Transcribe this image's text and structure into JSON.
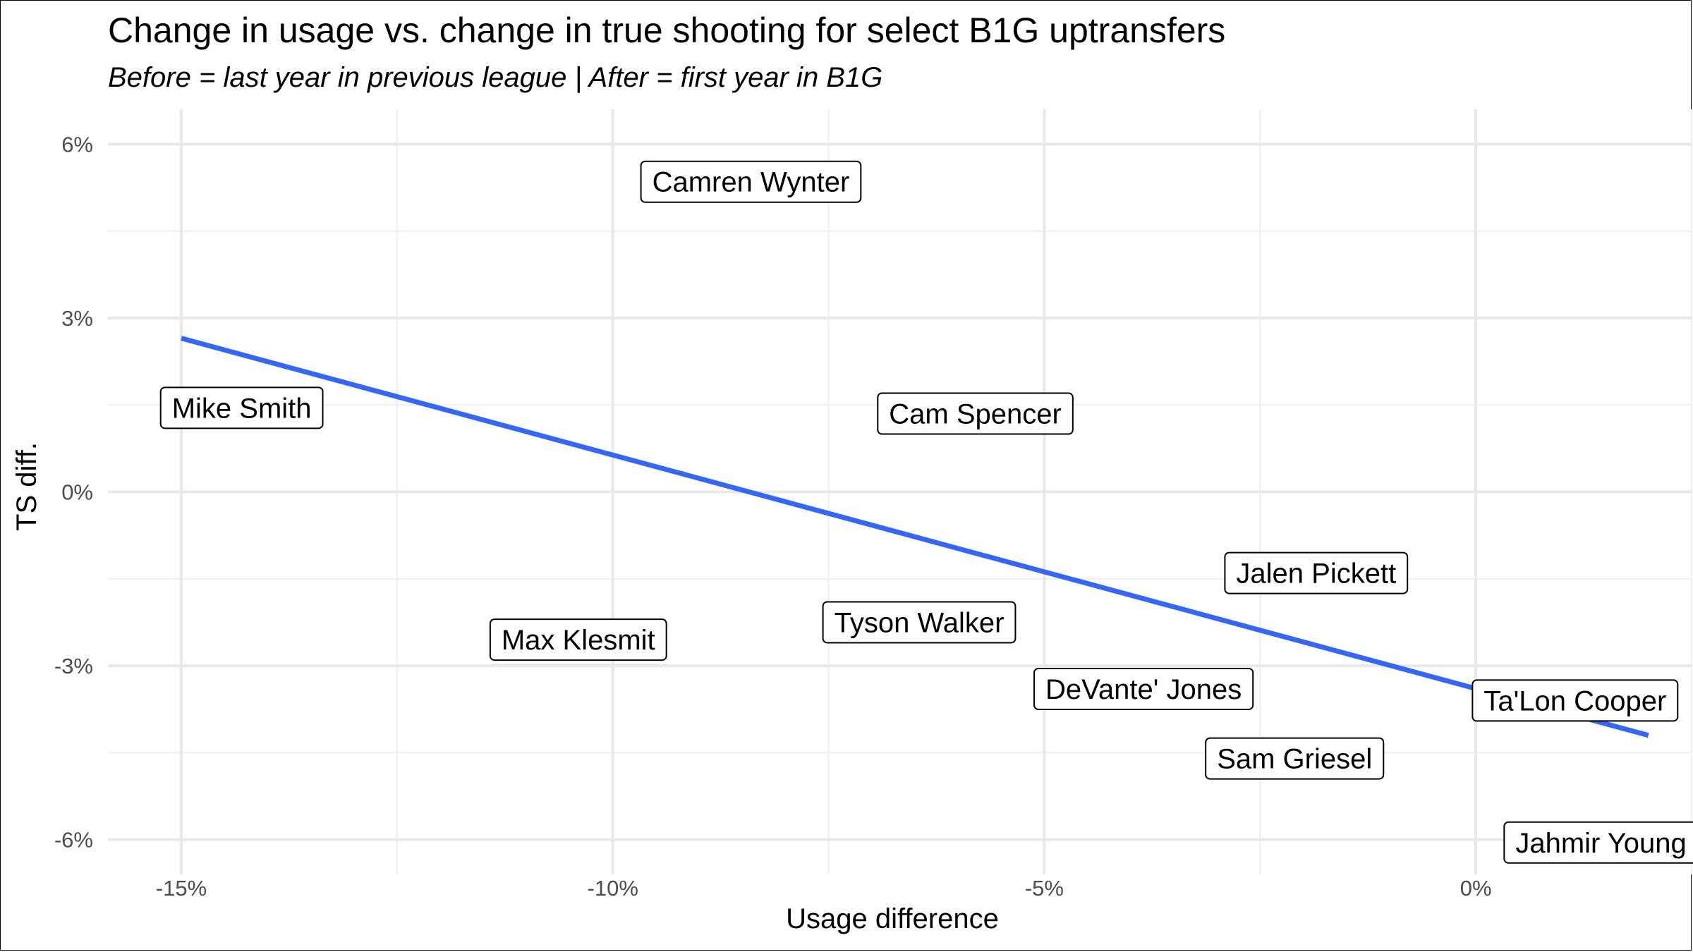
{
  "chart_data": {
    "type": "scatter",
    "title": "Change in usage vs. change in true shooting for select B1G uptransfers",
    "subtitle": "Before = last year in previous league | After = first year in B1G",
    "xlabel": "Usage difference",
    "ylabel": "TS diff.",
    "xlim": [
      -15.85,
      2.5
    ],
    "ylim": [
      -6.6,
      6.6
    ],
    "x_ticks": [
      -15,
      -10,
      -5,
      0
    ],
    "x_tick_labels": [
      "-15%",
      "-10%",
      "-5%",
      "0%"
    ],
    "y_ticks": [
      -6,
      -3,
      0,
      3,
      6
    ],
    "y_tick_labels": [
      "-6%",
      "-3%",
      "0%",
      "3%",
      "6%"
    ],
    "grid": true,
    "points": [
      {
        "label": "Camren Wynter",
        "x": -8.4,
        "y": 5.35
      },
      {
        "label": "Mike Smith",
        "x": -14.3,
        "y": 1.45
      },
      {
        "label": "Cam Spencer",
        "x": -5.8,
        "y": 1.35
      },
      {
        "label": "Jalen Pickett",
        "x": -1.85,
        "y": -1.4
      },
      {
        "label": "Max Klesmit",
        "x": -10.4,
        "y": -2.55
      },
      {
        "label": "Tyson Walker",
        "x": -6.45,
        "y": -2.25
      },
      {
        "label": "DeVante' Jones",
        "x": -3.85,
        "y": -3.4
      },
      {
        "label": "Ta'Lon Cooper",
        "x": 1.15,
        "y": -3.6
      },
      {
        "label": "Sam Griesel",
        "x": -2.1,
        "y": -4.6
      },
      {
        "label": "Jahmir Young",
        "x": 1.45,
        "y": -6.05
      }
    ],
    "trend_line": {
      "x": [
        -15,
        2
      ],
      "y": [
        2.65,
        -4.2
      ],
      "color": "#3366ff"
    }
  }
}
